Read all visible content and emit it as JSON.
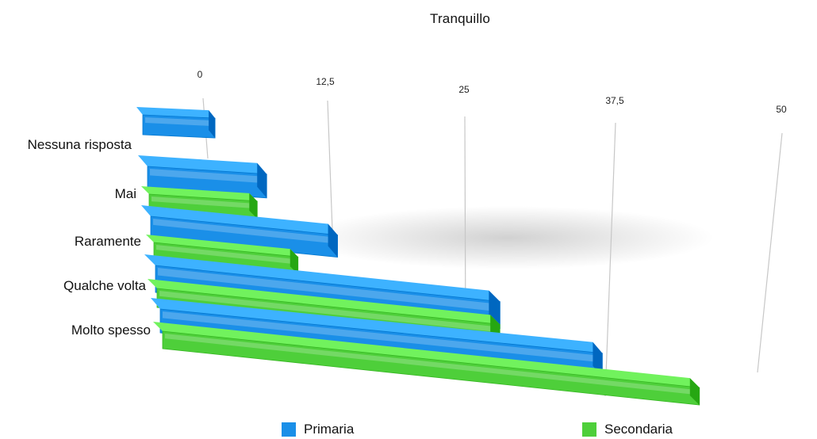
{
  "chart_data": {
    "type": "bar",
    "orientation": "horizontal",
    "title": "Tranquillo",
    "categories": [
      "Nessuna risposta",
      "Mai",
      "Raramente",
      "Qualche volta",
      "Molto spesso"
    ],
    "ticks": [
      "0",
      "12,5",
      "25",
      "37,5",
      "50"
    ],
    "xlim": [
      0,
      50
    ],
    "series": [
      {
        "name": "Primaria",
        "color": "#1a8fe8",
        "values": [
          1,
          6,
          13,
          28,
          37
        ]
      },
      {
        "name": "Secondaria",
        "color": "#4ecf3a",
        "values": [
          null,
          5,
          9,
          28,
          45
        ]
      }
    ],
    "grid": true,
    "legend_position": "bottom"
  }
}
